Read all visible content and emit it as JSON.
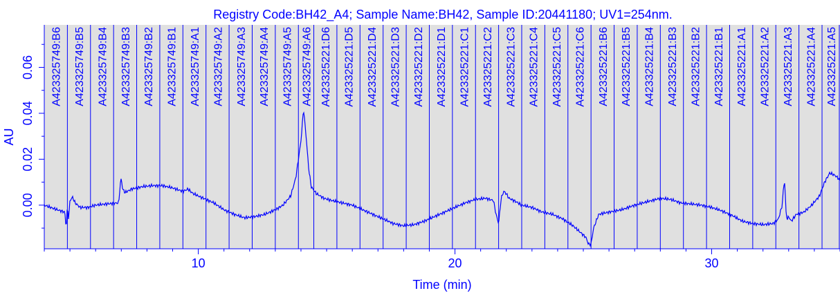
{
  "chart_data": {
    "type": "line",
    "title": "Registry Code:BH42_A4; Sample Name:BH42, Sample ID:20441180; UV1=254nm.",
    "xlabel": "Time (min)",
    "ylabel": "AU",
    "xlim": [
      4.0,
      35.0
    ],
    "ylim": [
      -0.019,
      0.0785
    ],
    "xticks": [
      10,
      20,
      30
    ],
    "yticks": [
      0.0,
      0.02,
      0.04,
      0.06
    ],
    "colors": {
      "line": "#0000ff",
      "plot_bg": "#e0e0e0",
      "text": "#0000ff"
    },
    "fractions": [
      {
        "label": "A423325749:B6",
        "start": 4.0,
        "end": 4.9
      },
      {
        "label": "A423325749:B5",
        "start": 4.9,
        "end": 5.8
      },
      {
        "label": "A423325749:B4",
        "start": 5.8,
        "end": 6.7
      },
      {
        "label": "A423325749:B3",
        "start": 6.7,
        "end": 7.6
      },
      {
        "label": "A423325749:B2",
        "start": 7.6,
        "end": 8.5
      },
      {
        "label": "A423325749:B1",
        "start": 8.5,
        "end": 9.4
      },
      {
        "label": "A423325749:A1",
        "start": 9.4,
        "end": 10.3
      },
      {
        "label": "A423325749:A2",
        "start": 10.3,
        "end": 11.2
      },
      {
        "label": "A423325749:A3",
        "start": 11.2,
        "end": 12.1
      },
      {
        "label": "A423325749:A4",
        "start": 12.1,
        "end": 13.0
      },
      {
        "label": "A423325749:A5",
        "start": 13.0,
        "end": 13.9
      },
      {
        "label": "A423325749:A6",
        "start": 13.9,
        "end": 14.5
      },
      {
        "label": "A423325221:D6",
        "start": 14.5,
        "end": 15.4
      },
      {
        "label": "A423325221:D5",
        "start": 15.4,
        "end": 16.3
      },
      {
        "label": "A423325221:D4",
        "start": 16.3,
        "end": 17.2
      },
      {
        "label": "A423325221:D3",
        "start": 17.2,
        "end": 18.1
      },
      {
        "label": "A423325221:D2",
        "start": 18.1,
        "end": 19.0
      },
      {
        "label": "A423325221:D1",
        "start": 19.0,
        "end": 19.9
      },
      {
        "label": "A423325221:C1",
        "start": 19.9,
        "end": 20.8
      },
      {
        "label": "A423325221:C2",
        "start": 20.8,
        "end": 21.7
      },
      {
        "label": "A423325221:C3",
        "start": 21.7,
        "end": 22.6
      },
      {
        "label": "A423325221:C4",
        "start": 22.6,
        "end": 23.5
      },
      {
        "label": "A423325221:C5",
        "start": 23.5,
        "end": 24.4
      },
      {
        "label": "A423325221:C6",
        "start": 24.4,
        "end": 25.3
      },
      {
        "label": "A423325221:B6",
        "start": 25.3,
        "end": 26.2
      },
      {
        "label": "A423325221:B5",
        "start": 26.2,
        "end": 27.1
      },
      {
        "label": "A423325221:B4",
        "start": 27.1,
        "end": 28.0
      },
      {
        "label": "A423325221:B3",
        "start": 28.0,
        "end": 28.9
      },
      {
        "label": "A423325221:B2",
        "start": 28.9,
        "end": 29.8
      },
      {
        "label": "A423325221:B1",
        "start": 29.8,
        "end": 30.7
      },
      {
        "label": "A423325221:A1",
        "start": 30.7,
        "end": 31.6
      },
      {
        "label": "A423325221:A2",
        "start": 31.6,
        "end": 32.5
      },
      {
        "label": "A423325221:A3",
        "start": 32.5,
        "end": 33.4
      },
      {
        "label": "A423325221:A4",
        "start": 33.4,
        "end": 34.3
      },
      {
        "label": "A423325221:A5",
        "start": 34.3,
        "end": 35.0
      }
    ],
    "series": [
      {
        "x": [
          4.0,
          4.5,
          4.8,
          4.85,
          4.9,
          4.95,
          5.0,
          5.1,
          5.2,
          5.4,
          5.7,
          6.0,
          6.4,
          6.9,
          6.95,
          7.0,
          7.05,
          7.15,
          7.4,
          7.8,
          8.2,
          8.6,
          9.0,
          9.4,
          9.6,
          9.8,
          10.2,
          10.6,
          11.0,
          11.4,
          11.8,
          12.2,
          12.6,
          13.0,
          13.3,
          13.6,
          13.8,
          13.9,
          14.0,
          14.1,
          14.2,
          14.3,
          14.4,
          14.6,
          14.9,
          15.2,
          15.6,
          16.0,
          16.4,
          16.8,
          17.2,
          17.6,
          18.0,
          18.4,
          18.8,
          19.2,
          19.6,
          20.0,
          20.4,
          20.8,
          21.2,
          21.5,
          21.6,
          21.7,
          21.8,
          21.9,
          22.0,
          22.1,
          22.3,
          22.6,
          23.0,
          23.4,
          23.8,
          24.2,
          24.6,
          24.9,
          25.1,
          25.2,
          25.3,
          25.4,
          25.6,
          26.0,
          26.5,
          27.0,
          27.5,
          28.0,
          28.4,
          28.8,
          29.2,
          29.6,
          30.0,
          30.4,
          30.8,
          31.2,
          31.6,
          32.0,
          32.4,
          32.6,
          32.75,
          32.8,
          32.85,
          32.9,
          32.95,
          33.0,
          33.1,
          33.3,
          33.6,
          33.9,
          34.2,
          34.4,
          34.6,
          34.8,
          35.0
        ],
        "y": [
          0.0,
          -0.002,
          -0.003,
          -0.01,
          -0.001,
          -0.006,
          0.002,
          0.0035,
          0.001,
          -0.001,
          -0.001,
          0.0,
          0.0005,
          0.001,
          0.008,
          0.012,
          0.007,
          0.0055,
          0.007,
          0.008,
          0.0085,
          0.0085,
          0.0075,
          0.006,
          0.007,
          0.005,
          0.003,
          0.001,
          -0.002,
          -0.004,
          -0.0055,
          -0.005,
          -0.004,
          -0.002,
          0.0,
          0.004,
          0.012,
          0.02,
          0.028,
          0.042,
          0.03,
          0.016,
          0.008,
          0.005,
          0.003,
          0.002,
          0.001,
          0.0,
          -0.002,
          -0.004,
          -0.006,
          -0.008,
          -0.009,
          -0.0085,
          -0.007,
          -0.005,
          -0.003,
          -0.001,
          0.001,
          0.0025,
          0.003,
          0.002,
          -0.004,
          -0.008,
          0.003,
          0.006,
          0.005,
          0.003,
          0.002,
          0.0,
          -0.001,
          -0.003,
          -0.004,
          -0.006,
          -0.009,
          -0.012,
          -0.014,
          -0.017,
          -0.017,
          -0.01,
          -0.004,
          -0.003,
          -0.002,
          0.0,
          0.0015,
          0.003,
          0.0025,
          0.001,
          0.0005,
          0.0,
          -0.001,
          -0.0025,
          -0.0045,
          -0.007,
          -0.008,
          -0.0085,
          -0.008,
          -0.006,
          0.0,
          0.008,
          0.01,
          -0.004,
          -0.006,
          -0.005,
          -0.007,
          -0.004,
          -0.003,
          0.0,
          0.004,
          0.01,
          0.014,
          0.013,
          0.011
        ]
      }
    ]
  }
}
